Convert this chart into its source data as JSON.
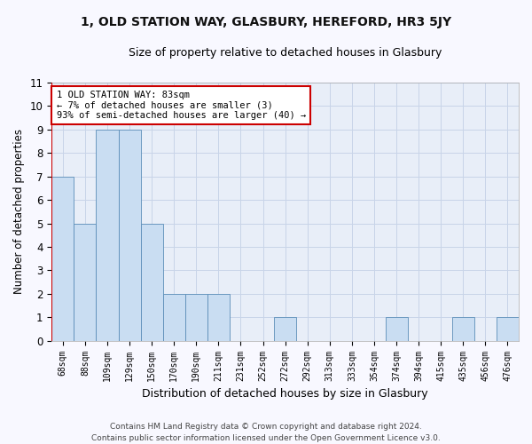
{
  "title": "1, OLD STATION WAY, GLASBURY, HEREFORD, HR3 5JY",
  "subtitle": "Size of property relative to detached houses in Glasbury",
  "xlabel": "Distribution of detached houses by size in Glasbury",
  "ylabel": "Number of detached properties",
  "categories": [
    "68sqm",
    "88sqm",
    "109sqm",
    "129sqm",
    "150sqm",
    "170sqm",
    "190sqm",
    "211sqm",
    "231sqm",
    "252sqm",
    "272sqm",
    "292sqm",
    "313sqm",
    "333sqm",
    "354sqm",
    "374sqm",
    "394sqm",
    "415sqm",
    "435sqm",
    "456sqm",
    "476sqm"
  ],
  "values": [
    7,
    5,
    9,
    9,
    5,
    2,
    2,
    2,
    0,
    0,
    1,
    0,
    0,
    0,
    0,
    1,
    0,
    0,
    1,
    0,
    1
  ],
  "bar_color": "#c9ddf2",
  "bar_edge_color": "#5b8db8",
  "annotation_line1": "1 OLD STATION WAY: 83sqm",
  "annotation_line2": "← 7% of detached houses are smaller (3)",
  "annotation_line3": "93% of semi-detached houses are larger (40) →",
  "annotation_box_color": "#cc0000",
  "red_line_color": "#cc0000",
  "ylim": [
    0,
    11
  ],
  "yticks": [
    0,
    1,
    2,
    3,
    4,
    5,
    6,
    7,
    8,
    9,
    10,
    11
  ],
  "grid_color": "#c8d4e8",
  "plot_bg_color": "#e8eef8",
  "background_color": "#f8f8ff",
  "footer_line1": "Contains HM Land Registry data © Crown copyright and database right 2024.",
  "footer_line2": "Contains public sector information licensed under the Open Government Licence v3.0."
}
